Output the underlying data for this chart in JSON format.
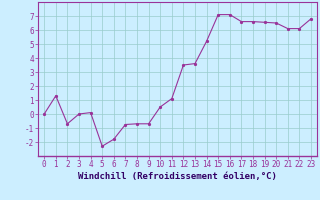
{
  "x": [
    0,
    1,
    2,
    3,
    4,
    5,
    6,
    7,
    8,
    9,
    10,
    11,
    12,
    13,
    14,
    15,
    16,
    17,
    18,
    19,
    20,
    21,
    22,
    23
  ],
  "y": [
    0,
    1.3,
    -0.7,
    0.0,
    0.1,
    -2.3,
    -1.8,
    -0.75,
    -0.7,
    -0.7,
    0.5,
    1.1,
    3.5,
    3.6,
    5.2,
    7.1,
    7.1,
    6.6,
    6.6,
    6.55,
    6.5,
    6.1,
    6.1,
    6.8
  ],
  "line_color": "#993399",
  "marker": ".",
  "marker_size": 3,
  "bg_color": "#cceeff",
  "grid_color": "#99cccc",
  "xlabel": "Windchill (Refroidissement éolien,°C)",
  "ylim": [
    -3,
    8
  ],
  "xlim": [
    -0.5,
    23.5
  ],
  "yticks": [
    -2,
    -1,
    0,
    1,
    2,
    3,
    4,
    5,
    6,
    7
  ],
  "xticks": [
    0,
    1,
    2,
    3,
    4,
    5,
    6,
    7,
    8,
    9,
    10,
    11,
    12,
    13,
    14,
    15,
    16,
    17,
    18,
    19,
    20,
    21,
    22,
    23
  ],
  "tick_label_fontsize": 5.5,
  "xlabel_fontsize": 6.5,
  "spine_color": "#993399",
  "tick_color": "#993399",
  "label_color": "#330066"
}
